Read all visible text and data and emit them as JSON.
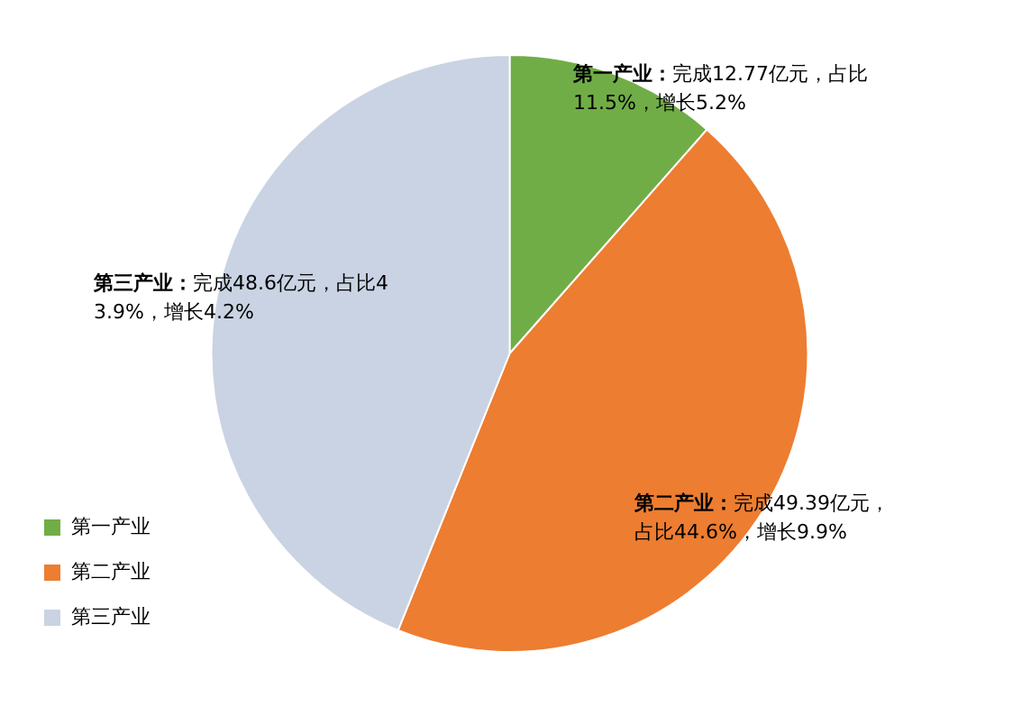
{
  "chart_data": {
    "type": "pie",
    "categories": [
      "第一产业",
      "第二产业",
      "第三产业"
    ],
    "values": [
      11.5,
      44.6,
      43.9
    ],
    "colors": [
      "#70ad47",
      "#ed7d31",
      "#c9d3e3"
    ],
    "legend": "left",
    "annotations": [
      "第一产业：完成12.77亿元，占比11.5%，增长5.2%",
      "第二产业：完成49.39亿元，占比44.6%，增长9.9%",
      "第三产业：完成48.6亿元，占比43.9%，增长4.2%"
    ]
  }
}
